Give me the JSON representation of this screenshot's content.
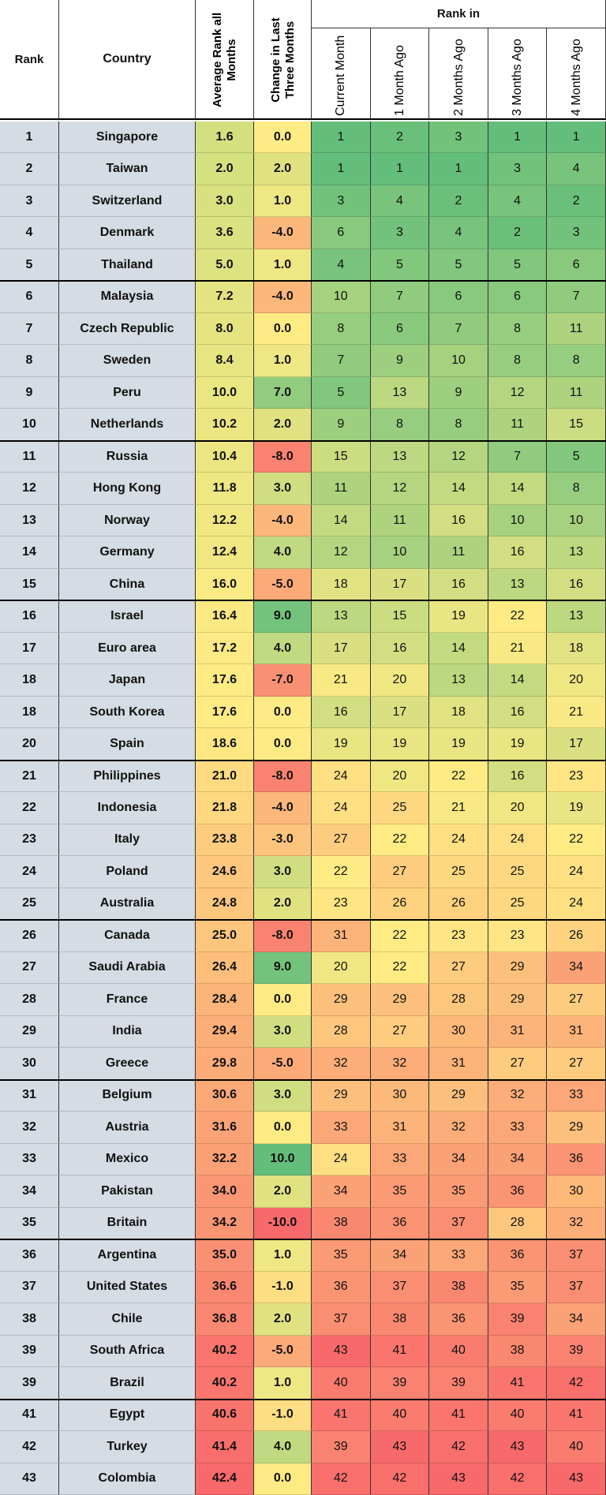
{
  "header": {
    "rank": "Rank",
    "country": "Country",
    "average": "Average Rank all Months",
    "change": "Change in Last Three Months",
    "rank_in": "Rank in",
    "months": [
      "Current Month",
      "1 Month Ago",
      "2 Months Ago",
      "3 Months Ago",
      "4 Months Ago"
    ]
  },
  "table": {
    "rows": [
      [
        1,
        "Singapore",
        "1.6",
        "0.0",
        1,
        2,
        3,
        1,
        1
      ],
      [
        2,
        "Taiwan",
        "2.0",
        "2.0",
        1,
        1,
        1,
        3,
        4
      ],
      [
        3,
        "Switzerland",
        "3.0",
        "1.0",
        3,
        4,
        2,
        4,
        2
      ],
      [
        4,
        "Denmark",
        "3.6",
        "-4.0",
        6,
        3,
        4,
        2,
        3
      ],
      [
        5,
        "Thailand",
        "5.0",
        "1.0",
        4,
        5,
        5,
        5,
        6
      ],
      [
        6,
        "Malaysia",
        "7.2",
        "-4.0",
        10,
        7,
        6,
        6,
        7
      ],
      [
        7,
        "Czech Republic",
        "8.0",
        "0.0",
        8,
        6,
        7,
        8,
        11
      ],
      [
        8,
        "Sweden",
        "8.4",
        "1.0",
        7,
        9,
        10,
        8,
        8
      ],
      [
        9,
        "Peru",
        "10.0",
        "7.0",
        5,
        13,
        9,
        12,
        11
      ],
      [
        10,
        "Netherlands",
        "10.2",
        "2.0",
        9,
        8,
        8,
        11,
        15
      ],
      [
        11,
        "Russia",
        "10.4",
        "-8.0",
        15,
        13,
        12,
        7,
        5
      ],
      [
        12,
        "Hong Kong",
        "11.8",
        "3.0",
        11,
        12,
        14,
        14,
        8
      ],
      [
        13,
        "Norway",
        "12.2",
        "-4.0",
        14,
        11,
        16,
        10,
        10
      ],
      [
        14,
        "Germany",
        "12.4",
        "4.0",
        12,
        10,
        11,
        16,
        13
      ],
      [
        15,
        "China",
        "16.0",
        "-5.0",
        18,
        17,
        16,
        13,
        16
      ],
      [
        16,
        "Israel",
        "16.4",
        "9.0",
        13,
        15,
        19,
        22,
        13
      ],
      [
        17,
        "Euro area",
        "17.2",
        "4.0",
        17,
        16,
        14,
        21,
        18
      ],
      [
        18,
        "Japan",
        "17.6",
        "-7.0",
        21,
        20,
        13,
        14,
        20
      ],
      [
        18,
        "South Korea",
        "17.6",
        "0.0",
        16,
        17,
        18,
        16,
        21
      ],
      [
        20,
        "Spain",
        "18.6",
        "0.0",
        19,
        19,
        19,
        19,
        17
      ],
      [
        21,
        "Philippines",
        "21.0",
        "-8.0",
        24,
        20,
        22,
        16,
        23
      ],
      [
        22,
        "Indonesia",
        "21.8",
        "-4.0",
        24,
        25,
        21,
        20,
        19
      ],
      [
        23,
        "Italy",
        "23.8",
        "-3.0",
        27,
        22,
        24,
        24,
        22
      ],
      [
        24,
        "Poland",
        "24.6",
        "3.0",
        22,
        27,
        25,
        25,
        24
      ],
      [
        25,
        "Australia",
        "24.8",
        "2.0",
        23,
        26,
        26,
        25,
        24
      ],
      [
        26,
        "Canada",
        "25.0",
        "-8.0",
        31,
        22,
        23,
        23,
        26
      ],
      [
        27,
        "Saudi Arabia",
        "26.4",
        "9.0",
        20,
        22,
        27,
        29,
        34
      ],
      [
        28,
        "France",
        "28.4",
        "0.0",
        29,
        29,
        28,
        29,
        27
      ],
      [
        29,
        "India",
        "29.4",
        "3.0",
        28,
        27,
        30,
        31,
        31
      ],
      [
        30,
        "Greece",
        "29.8",
        "-5.0",
        32,
        32,
        31,
        27,
        27
      ],
      [
        31,
        "Belgium",
        "30.6",
        "3.0",
        29,
        30,
        29,
        32,
        33
      ],
      [
        32,
        "Austria",
        "31.6",
        "0.0",
        33,
        31,
        32,
        33,
        29
      ],
      [
        33,
        "Mexico",
        "32.2",
        "10.0",
        24,
        33,
        34,
        34,
        36
      ],
      [
        34,
        "Pakistan",
        "34.0",
        "2.0",
        34,
        35,
        35,
        36,
        30
      ],
      [
        35,
        "Britain",
        "34.2",
        "-10.0",
        38,
        36,
        37,
        28,
        32
      ],
      [
        36,
        "Argentina",
        "35.0",
        "1.0",
        35,
        34,
        33,
        36,
        37
      ],
      [
        37,
        "United States",
        "36.6",
        "-1.0",
        36,
        37,
        38,
        35,
        37
      ],
      [
        38,
        "Chile",
        "36.8",
        "2.0",
        37,
        38,
        36,
        39,
        34
      ],
      [
        39,
        "South Africa",
        "40.2",
        "-5.0",
        43,
        41,
        40,
        38,
        39
      ],
      [
        39,
        "Brazil",
        "40.2",
        "1.0",
        40,
        39,
        39,
        41,
        42
      ],
      [
        41,
        "Egypt",
        "40.6",
        "-1.0",
        41,
        40,
        41,
        40,
        41
      ],
      [
        42,
        "Turkey",
        "41.4",
        "4.0",
        39,
        43,
        42,
        43,
        40
      ],
      [
        43,
        "Colombia",
        "42.4",
        "0.0",
        42,
        42,
        43,
        42,
        43
      ]
    ]
  }
}
